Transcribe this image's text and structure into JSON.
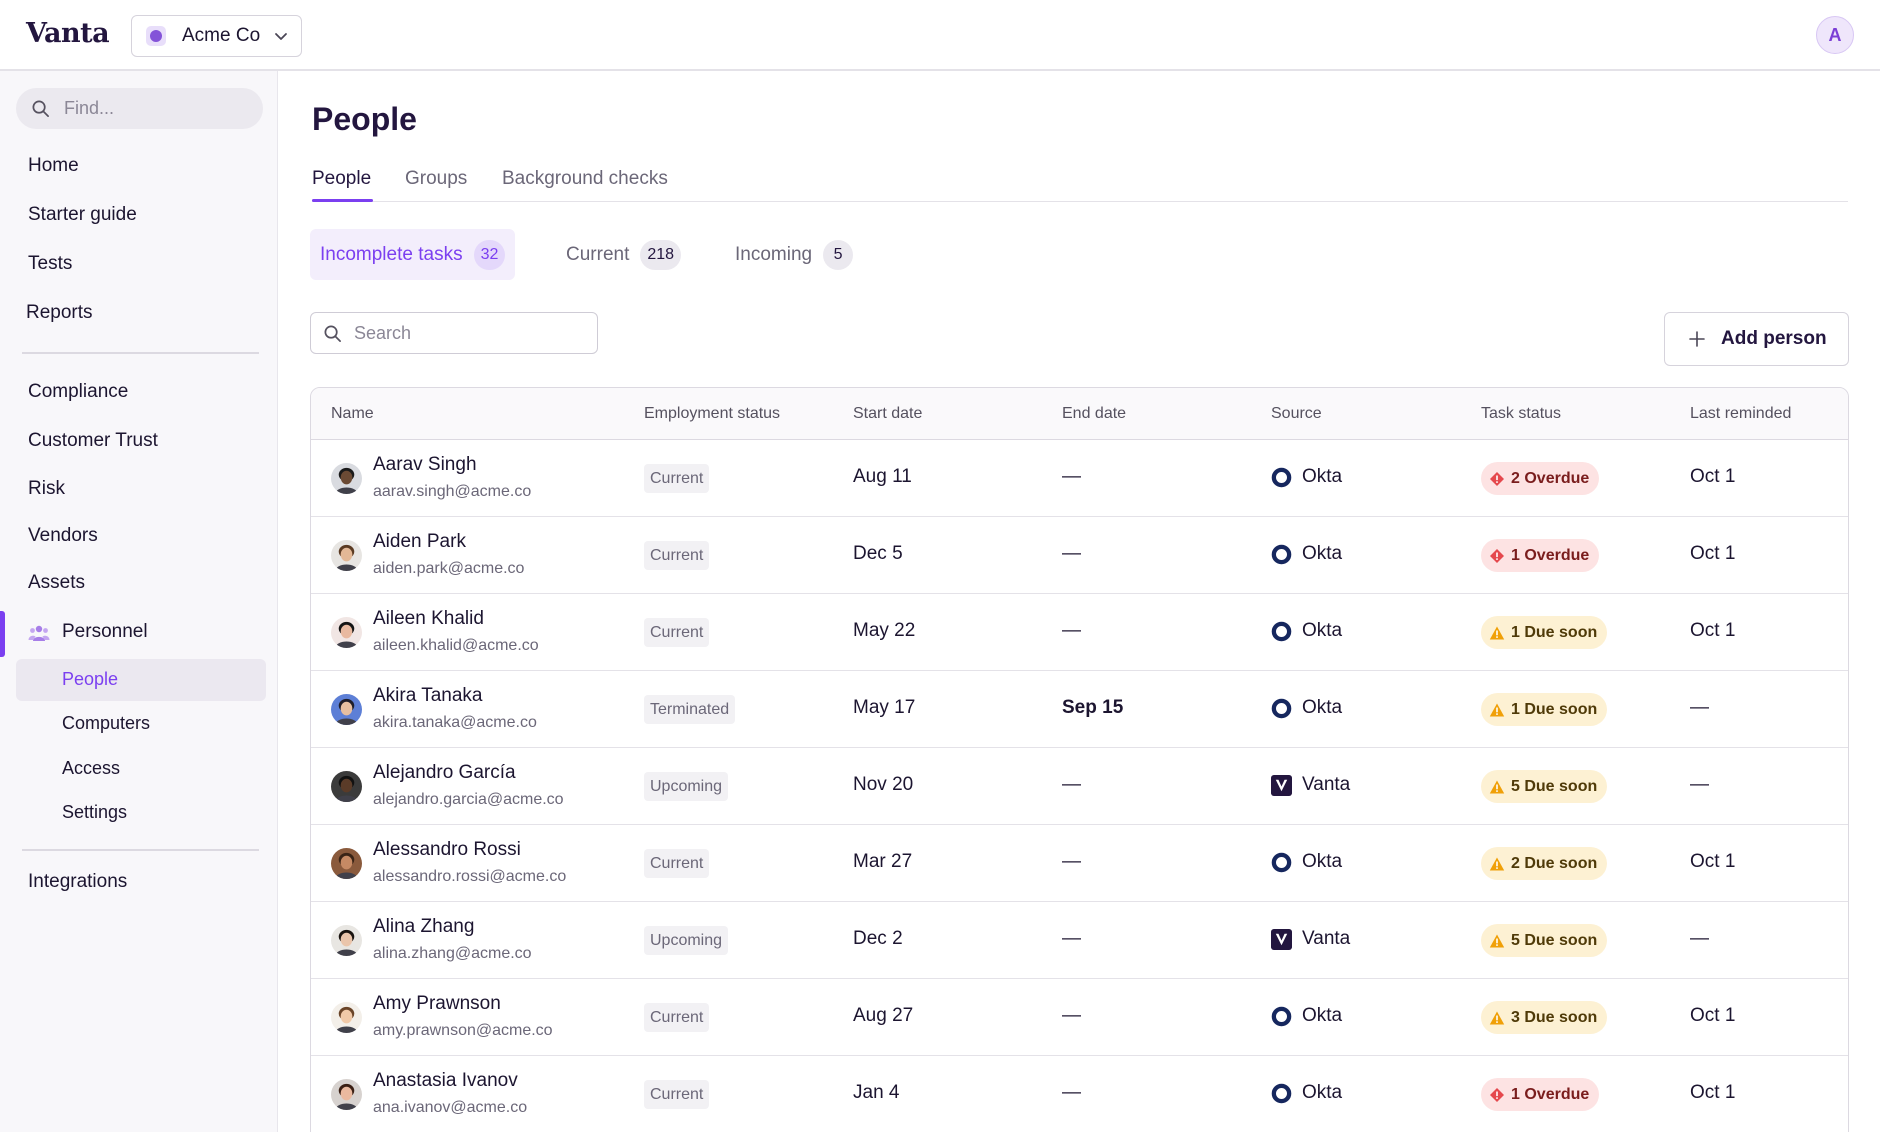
{
  "app": {
    "logo": "Vanta",
    "org": "Acme Co",
    "user_initial": "A"
  },
  "sidebar": {
    "find_placeholder": "Find...",
    "top_items": [
      "Home",
      "Starter guide",
      "Tests",
      "Reports"
    ],
    "mid_items": [
      "Compliance",
      "Customer Trust",
      "Risk",
      "Vendors",
      "Assets"
    ],
    "personnel": "Personnel",
    "personnel_items": [
      "People",
      "Computers",
      "Access",
      "Settings"
    ],
    "bottom_items": [
      "Integrations"
    ]
  },
  "page": {
    "title": "People",
    "tabs": [
      "People",
      "Groups",
      "Background checks"
    ],
    "segments": [
      {
        "label": "Incomplete tasks",
        "count": "32"
      },
      {
        "label": "Current",
        "count": "218"
      },
      {
        "label": "Incoming",
        "count": "5"
      }
    ],
    "search_placeholder": "Search",
    "add_label": "Add person"
  },
  "table": {
    "columns": [
      "Name",
      "Employment status",
      "Start date",
      "End date",
      "Source",
      "Task status",
      "Last reminded"
    ],
    "rows": [
      {
        "name": "Aarav Singh",
        "email": "aarav.singh@acme.co",
        "status": "Current",
        "start": "Aug 11",
        "end": "—",
        "source": "Okta",
        "task": "2 Overdue",
        "task_kind": "overdue",
        "reminded": "Oct 1",
        "skin": "#6b4a34",
        "hair": "#1a1a1a",
        "bg": "#d9dbe0"
      },
      {
        "name": "Aiden Park",
        "email": "aiden.park@acme.co",
        "status": "Current",
        "start": "Dec 5",
        "end": "—",
        "source": "Okta",
        "task": "1 Overdue",
        "task_kind": "overdue",
        "reminded": "Oct 1",
        "skin": "#e3b896",
        "hair": "#5a3a22",
        "bg": "#e7e5e2"
      },
      {
        "name": "Aileen Khalid",
        "email": "aileen.khalid@acme.co",
        "status": "Current",
        "start": "May 22",
        "end": "—",
        "source": "Okta",
        "task": "1 Due soon",
        "task_kind": "due",
        "reminded": "Oct 1",
        "skin": "#e8b9a0",
        "hair": "#141414",
        "bg": "#f1e6e4"
      },
      {
        "name": "Akira Tanaka",
        "email": "akira.tanaka@acme.co",
        "status": "Terminated",
        "start": "May 17",
        "end": "Sep 15",
        "source": "Okta",
        "task": "1 Due soon",
        "task_kind": "due",
        "reminded": "—",
        "skin": "#e6bfa1",
        "hair": "#1e1e2a",
        "bg": "#5d7fd6"
      },
      {
        "name": "Alejandro García",
        "email": "alejandro.garcia@acme.co",
        "status": "Upcoming",
        "start": "Nov 20",
        "end": "—",
        "source": "Vanta",
        "task": "5 Due soon",
        "task_kind": "due",
        "reminded": "—",
        "skin": "#5a3b28",
        "hair": "#111111",
        "bg": "#3b3b3b"
      },
      {
        "name": "Alessandro Rossi",
        "email": "alessandro.rossi@acme.co",
        "status": "Current",
        "start": "Mar 27",
        "end": "—",
        "source": "Okta",
        "task": "2 Due soon",
        "task_kind": "due",
        "reminded": "Oct 1",
        "skin": "#c68a64",
        "hair": "#3a2416",
        "bg": "#8a5a3c"
      },
      {
        "name": "Alina Zhang",
        "email": "alina.zhang@acme.co",
        "status": "Upcoming",
        "start": "Dec 2",
        "end": "—",
        "source": "Vanta",
        "task": "5 Due soon",
        "task_kind": "due",
        "reminded": "—",
        "skin": "#eac5ab",
        "hair": "#1a1410",
        "bg": "#e8e6e2"
      },
      {
        "name": "Amy Prawnson",
        "email": "amy.prawnson@acme.co",
        "status": "Current",
        "start": "Aug 27",
        "end": "—",
        "source": "Okta",
        "task": "3 Due soon",
        "task_kind": "due",
        "reminded": "Oct 1",
        "skin": "#f0c9a8",
        "hair": "#6a4428",
        "bg": "#f3efe9"
      },
      {
        "name": "Anastasia Ivanov",
        "email": "ana.ivanov@acme.co",
        "status": "Current",
        "start": "Jan 4",
        "end": "—",
        "source": "Okta",
        "task": "1 Overdue",
        "task_kind": "overdue",
        "reminded": "Oct 1",
        "skin": "#eab99f",
        "hair": "#3a1f14",
        "bg": "#d7d2cf"
      }
    ]
  },
  "colors": {
    "accent": "#7b3ff0",
    "okta": "#16275e",
    "overdue_bg": "#fde3e3",
    "due_bg": "#fdf1d3"
  }
}
